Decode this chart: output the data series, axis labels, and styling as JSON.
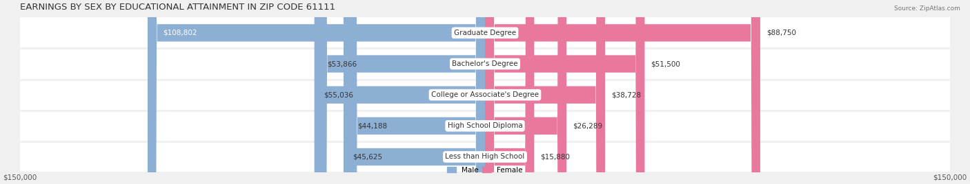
{
  "title": "EARNINGS BY SEX BY EDUCATIONAL ATTAINMENT IN ZIP CODE 61111",
  "source": "Source: ZipAtlas.com",
  "categories": [
    "Less than High School",
    "High School Diploma",
    "College or Associate's Degree",
    "Bachelor's Degree",
    "Graduate Degree"
  ],
  "male_values": [
    45625,
    44188,
    55036,
    53866,
    108802
  ],
  "female_values": [
    15880,
    26289,
    38728,
    51500,
    88750
  ],
  "male_color": "#8eafd4",
  "female_color": "#e8789c",
  "max_value": 150000,
  "bg_color": "#f0f0f0",
  "row_bg_color": "#e8e8e8",
  "label_bg_color": "#ffffff",
  "bar_height": 0.55,
  "figsize": [
    14.06,
    2.68
  ],
  "dpi": 100,
  "title_fontsize": 9.5,
  "label_fontsize": 7.5,
  "value_fontsize": 7.5,
  "axis_label_fontsize": 7.5
}
